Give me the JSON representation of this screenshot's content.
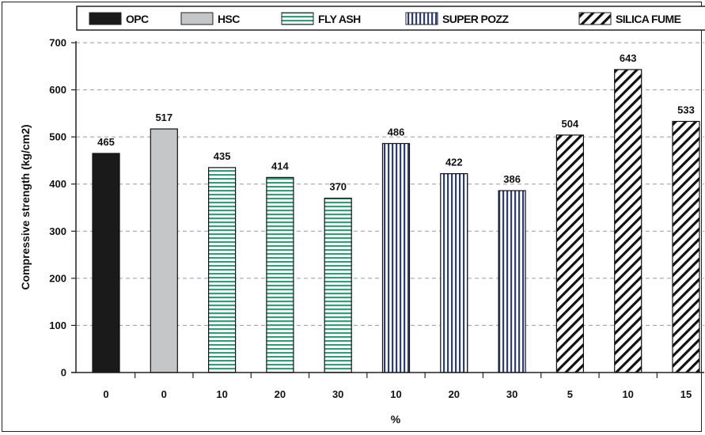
{
  "chart_data": {
    "type": "bar",
    "categories": [
      "0",
      "0",
      "10",
      "20",
      "30",
      "10",
      "20",
      "30",
      "5",
      "10",
      "15"
    ],
    "values": [
      465,
      517,
      435,
      414,
      370,
      486,
      422,
      386,
      504,
      643,
      533
    ],
    "groups": [
      "OPC",
      "HSC",
      "FLY ASH",
      "FLY ASH",
      "FLY ASH",
      "SUPER POZZ",
      "SUPER POZZ",
      "SUPER POZZ",
      "SILICA FUME",
      "SILICA FUME",
      "SILICA FUME"
    ],
    "xlabel": "%",
    "ylabel": "Compressive strength (kg/cm2)",
    "ylim": [
      0,
      700
    ],
    "yticks": [
      "0",
      "100",
      "200",
      "300",
      "400",
      "500",
      "600",
      "700"
    ],
    "grid": true,
    "legend_position": "top",
    "legend": [
      {
        "name": "OPC",
        "pattern": "solid-black"
      },
      {
        "name": "HSC",
        "pattern": "solid-gray"
      },
      {
        "name": "FLY ASH",
        "pattern": "horizontal-lines-green"
      },
      {
        "name": "SUPER POZZ",
        "pattern": "vertical-lines-blue"
      },
      {
        "name": "SILICA FUME",
        "pattern": "diagonal-hatch-black"
      }
    ],
    "colors": {
      "OPC": "#1a1a1a",
      "HSC": "#c4c6c8",
      "FLY ASH": "#3a9a7a",
      "SUPER POZZ": "#2c3e78",
      "SILICA FUME": "#111111"
    }
  }
}
